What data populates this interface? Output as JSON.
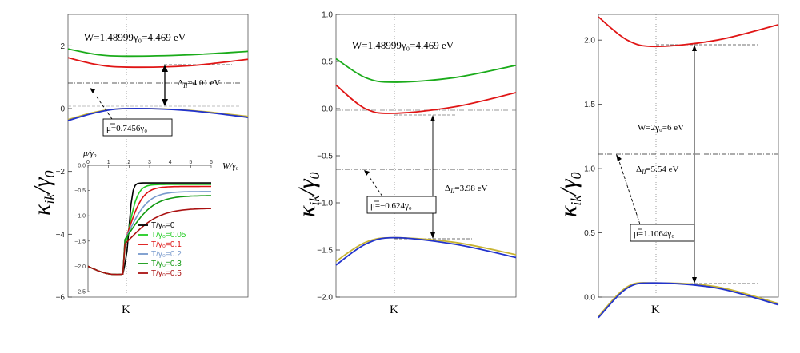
{
  "chart_data": [
    {
      "type": "line",
      "ylabel": "κ_ik/γ_0",
      "ylabel_main": "κ",
      "ylabel_sub": "ik",
      "ylabel_den": "/γ",
      "ylabel_den_sub": "0",
      "ylim": [
        -6,
        3
      ],
      "yticks": [
        -6,
        -4,
        -2,
        0,
        2
      ],
      "xtick": "K",
      "title": "W=1.48999γ₀=4.469 eV",
      "gap_label": "Δ_II=4.01 eV",
      "gap_label_main": "Δ",
      "gap_label_sub": "II",
      "gap_label_val": "=4.01 eV",
      "mu_label": "μ=0.7456γ₀",
      "mu_value": 0.7456,
      "series": [
        {
          "name": "green band",
          "color": "#1aab1a",
          "k": [
            -1,
            -0.5,
            0,
            0.5,
            1
          ],
          "values": [
            1.9,
            1.72,
            1.67,
            1.71,
            1.82
          ]
        },
        {
          "name": "red band",
          "color": "#e01515",
          "k": [
            -1,
            -0.5,
            0,
            0.5,
            1
          ],
          "values": [
            1.62,
            1.4,
            1.32,
            1.36,
            1.57
          ]
        },
        {
          "name": "yellow band",
          "color": "#c8b432",
          "k": [
            -1,
            -0.5,
            0,
            0.5,
            1
          ],
          "values": [
            -0.35,
            -0.1,
            0.0,
            -0.05,
            -0.25
          ]
        },
        {
          "name": "blue band",
          "color": "#2233cc",
          "k": [
            -1,
            -0.5,
            0,
            0.5,
            1
          ],
          "values": [
            -0.38,
            -0.12,
            0.0,
            -0.06,
            -0.28
          ]
        }
      ],
      "inset": {
        "ylabel": "μ/γ₀",
        "xlabel": "W/γ₀",
        "xticks": [
          0,
          1,
          2,
          3,
          4,
          5,
          6
        ],
        "yticks": [
          0.0,
          -0.5,
          -1.0,
          -1.5,
          -2.0,
          -2.5
        ],
        "xlim": [
          0,
          6
        ],
        "ylim": [
          -2.5,
          0
        ],
        "legend": [
          {
            "label": "T/γ₀=0",
            "color": "#000000",
            "plateau": -0.35
          },
          {
            "label": "T/γ₀=0.05",
            "color": "#22cc22",
            "plateau": -0.38
          },
          {
            "label": "T/γ₀=0.1",
            "color": "#dd1111",
            "plateau": -0.42
          },
          {
            "label": "T/γ₀=0.2",
            "color": "#7799cc",
            "plateau": -0.52
          },
          {
            "label": "T/γ₀=0.3",
            "color": "#119911",
            "plateau": -0.6
          },
          {
            "label": "T/γ₀=0.5",
            "color": "#aa1111",
            "plateau": -0.85
          }
        ]
      }
    },
    {
      "type": "line",
      "ylabel": "κ_ik/γ_0",
      "ylabel_main": "κ",
      "ylabel_sub": "ik",
      "ylabel_den": "/γ",
      "ylabel_den_sub": "0",
      "ylim": [
        -2.0,
        1.0
      ],
      "yticks": [
        -2.0,
        -1.5,
        -1.0,
        -0.5,
        0.0,
        0.5,
        1.0
      ],
      "xtick": "K",
      "title": "W=1.48999γ₀=4.469 eV",
      "gap_label": "Δ_II=3.98 eV",
      "gap_label_main": "Δ",
      "gap_label_sub": "II",
      "gap_label_val": "=3.98 eV",
      "mu_label": "μ=−0.624γ₀",
      "mu_value": -0.624,
      "series": [
        {
          "name": "green band",
          "color": "#1aab1a",
          "k": [
            -1,
            -0.5,
            0,
            0.5,
            1
          ],
          "values": [
            0.53,
            0.33,
            0.28,
            0.33,
            0.46
          ]
        },
        {
          "name": "red band",
          "color": "#e01515",
          "k": [
            -1,
            -0.5,
            0,
            0.5,
            1
          ],
          "values": [
            0.25,
            0.0,
            -0.05,
            0.02,
            0.17
          ]
        },
        {
          "name": "yellow band",
          "color": "#c8b432",
          "k": [
            -1,
            -0.5,
            0,
            0.5,
            1
          ],
          "values": [
            -1.62,
            -1.42,
            -1.37,
            -1.42,
            -1.55
          ]
        },
        {
          "name": "blue band",
          "color": "#2233cc",
          "k": [
            -1,
            -0.5,
            0,
            0.5,
            1
          ],
          "values": [
            -1.66,
            -1.44,
            -1.37,
            -1.44,
            -1.58
          ]
        }
      ]
    },
    {
      "type": "line",
      "ylabel": "κ_ik/γ_0",
      "ylabel_main": "κ",
      "ylabel_sub": "ik",
      "ylabel_den": "/γ",
      "ylabel_den_sub": "0",
      "ylim": [
        0.0,
        2.2
      ],
      "yticks": [
        0.0,
        0.5,
        1.0,
        1.5,
        2.0
      ],
      "xtick": "K",
      "title": "W=2γ₀=6 eV",
      "gap_label": "Δ_II=5.54 eV",
      "gap_label_main": "Δ",
      "gap_label_sub": "II",
      "gap_label_val": "=5.54 eV",
      "mu_label": "μ=1.1064γ₀",
      "mu_value": 1.1064,
      "series": [
        {
          "name": "red band",
          "color": "#e01515",
          "k": [
            -1,
            -0.5,
            0,
            0.5,
            1
          ],
          "values": [
            2.18,
            2.0,
            1.95,
            2.0,
            2.12
          ]
        },
        {
          "name": "yellow band",
          "color": "#c8b432",
          "k": [
            -1,
            -0.5,
            0,
            0.5,
            1
          ],
          "values": [
            -0.15,
            0.08,
            0.11,
            0.08,
            -0.05
          ]
        },
        {
          "name": "blue band",
          "color": "#2233cc",
          "k": [
            -1,
            -0.5,
            0,
            0.5,
            1
          ],
          "values": [
            -0.16,
            0.07,
            0.11,
            0.07,
            -0.06
          ]
        }
      ]
    }
  ]
}
